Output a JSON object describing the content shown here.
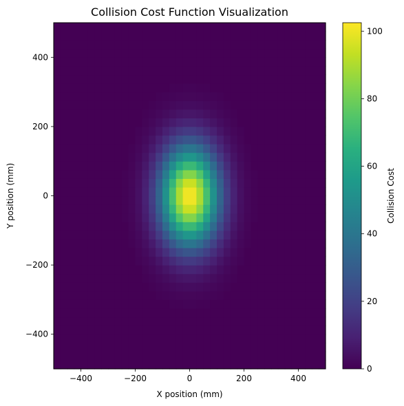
{
  "chart_data": {
    "type": "heatmap",
    "title": "Collision Cost Function Visualization",
    "xlabel": "X position (mm)",
    "ylabel": "Y position (mm)",
    "colorbar_label": "Collision Cost",
    "colormap": "viridis",
    "xlim": [
      -500,
      500
    ],
    "ylim": [
      -500,
      500
    ],
    "xticks": [
      -400,
      -200,
      0,
      200,
      400
    ],
    "yticks": [
      -400,
      -200,
      0,
      200,
      400
    ],
    "colorbar_ticks": [
      0,
      20,
      40,
      60,
      80,
      100
    ],
    "colorbar_range": [
      0,
      102.5
    ],
    "grid": false,
    "grid_resolution": [
      40,
      40
    ],
    "cost_model": {
      "shape": "gaussian",
      "peak": 102.5,
      "center": [
        0,
        0
      ],
      "sigma_x": 75,
      "sigma_y": 100,
      "cutoff": 0.5
    }
  }
}
